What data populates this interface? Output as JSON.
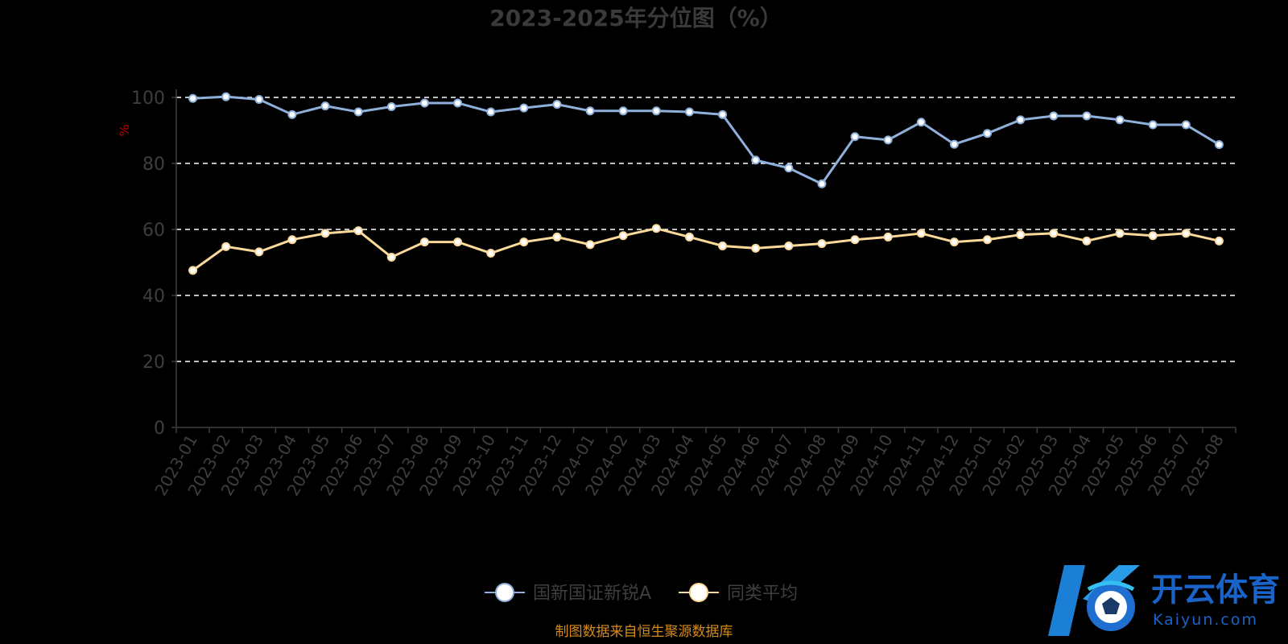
{
  "chart_data": {
    "type": "line",
    "title": "2023-2025年分位图（%）",
    "ylabel": "%",
    "xlabel": "",
    "ylim": [
      0,
      100
    ],
    "yticks": [
      0,
      20,
      40,
      60,
      80,
      100
    ],
    "grid": "horizontal dashed",
    "legend_position": "bottom",
    "categories": [
      "2023-01",
      "2023-02",
      "2023-03",
      "2023-04",
      "2023-05",
      "2023-06",
      "2023-07",
      "2023-08",
      "2023-09",
      "2023-10",
      "2023-11",
      "2023-12",
      "2024-01",
      "2024-02",
      "2024-03",
      "2024-04",
      "2024-05",
      "2024-06",
      "2024-07",
      "2024-08",
      "2024-09",
      "2024-10",
      "2024-11",
      "2024-12",
      "2025-01",
      "2025-02",
      "2025-03",
      "2025-04",
      "2025-05",
      "2025-06",
      "2025-07",
      "2025-08"
    ],
    "series": [
      {
        "name": "国新国证新锐A",
        "color": "#8eb0db",
        "values": [
          99.7,
          100.2,
          99.4,
          94.8,
          97.4,
          95.6,
          97.2,
          98.3,
          98.3,
          95.6,
          96.8,
          97.9,
          95.9,
          95.9,
          95.9,
          95.6,
          94.8,
          81.0,
          78.6,
          73.8,
          88.1,
          87.1,
          92.5,
          85.8,
          89.1,
          93.2,
          94.4,
          94.4,
          93.2,
          91.7,
          91.7,
          85.7
        ]
      },
      {
        "name": "同类平均",
        "color": "#fbd99b",
        "values": [
          47.6,
          54.8,
          53.2,
          56.9,
          58.8,
          59.6,
          51.6,
          56.2,
          56.2,
          52.8,
          56.2,
          57.7,
          55.4,
          58.1,
          60.3,
          57.7,
          55.0,
          54.3,
          55.0,
          55.7,
          56.9,
          57.7,
          58.8,
          56.2,
          56.9,
          58.4,
          58.8,
          56.5,
          58.8,
          58.1,
          58.8,
          56.5
        ]
      }
    ]
  },
  "source_note": "制图数据来自恒生聚源数据库",
  "watermark": {
    "brand": "开云体育",
    "sub": "Kaiyun.com"
  }
}
